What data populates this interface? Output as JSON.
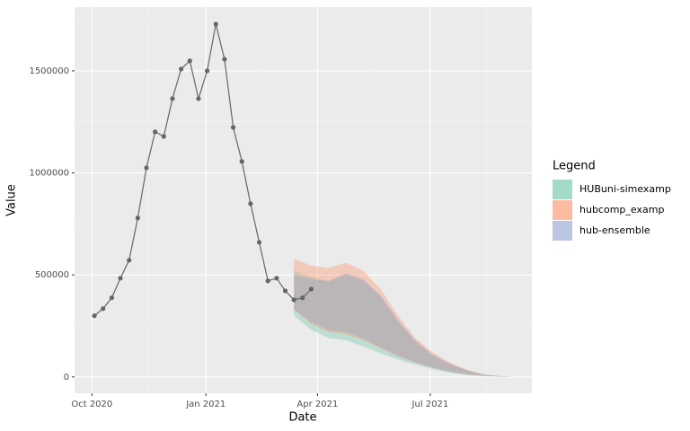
{
  "chart_data": {
    "type": "line",
    "x_label": "Date",
    "y_label": "Value",
    "legend_title": "Legend",
    "legend_position": "right",
    "grid": true,
    "xlim": [
      "2020-09-17",
      "2021-09-21"
    ],
    "xticks": [
      {
        "value": "2020-10-01",
        "label": "Oct 2020"
      },
      {
        "value": "2021-01-01",
        "label": "Jan 2021"
      },
      {
        "value": "2021-04-01",
        "label": "Apr 2021"
      },
      {
        "value": "2021-07-01",
        "label": "Jul 2021"
      }
    ],
    "ylim": [
      -80000,
      1812000
    ],
    "yticks": [
      0,
      500000,
      1000000,
      1500000
    ],
    "observed": {
      "color": "#666666",
      "x": [
        "2020-10-03",
        "2020-10-10",
        "2020-10-17",
        "2020-10-24",
        "2020-10-31",
        "2020-11-07",
        "2020-11-14",
        "2020-11-21",
        "2020-11-28",
        "2020-12-05",
        "2020-12-12",
        "2020-12-19",
        "2020-12-26",
        "2021-01-02",
        "2021-01-09",
        "2021-01-16",
        "2021-01-23",
        "2021-01-30",
        "2021-02-06",
        "2021-02-13",
        "2021-02-20",
        "2021-02-27",
        "2021-03-06",
        "2021-03-13",
        "2021-03-20",
        "2021-03-27"
      ],
      "values": [
        300000,
        335000,
        388000,
        484000,
        572000,
        779000,
        1025000,
        1201000,
        1179000,
        1364000,
        1509000,
        1549000,
        1364000,
        1500000,
        1729000,
        1557000,
        1223000,
        1056000,
        849000,
        660000,
        471000,
        484000,
        422000,
        378000,
        388000,
        431000
      ]
    },
    "series": [
      {
        "name": "HUBuni-simexamp",
        "color": "#66c2a5",
        "x": [
          "2021-03-13",
          "2021-03-27",
          "2021-04-10",
          "2021-04-24",
          "2021-05-08",
          "2021-05-22",
          "2021-06-05",
          "2021-06-19",
          "2021-07-03",
          "2021-07-17",
          "2021-07-31",
          "2021-08-14",
          "2021-08-28",
          "2021-09-04"
        ],
        "upper": [
          520000,
          490000,
          470000,
          500000,
          470000,
          390000,
          270000,
          170000,
          105000,
          60000,
          30000,
          10000,
          3000,
          1000
        ],
        "lower": [
          300000,
          230000,
          190000,
          180000,
          150000,
          115000,
          85000,
          60000,
          38000,
          20000,
          10000,
          4000,
          1000,
          0
        ]
      },
      {
        "name": "hubcomp_examp",
        "color": "#fc8d62",
        "x": [
          "2021-03-13",
          "2021-03-27",
          "2021-04-10",
          "2021-04-24",
          "2021-05-08",
          "2021-05-22",
          "2021-06-05",
          "2021-06-19",
          "2021-07-03",
          "2021-07-17",
          "2021-07-31",
          "2021-08-14",
          "2021-08-28",
          "2021-09-04"
        ],
        "upper": [
          580000,
          545000,
          535000,
          560000,
          520000,
          430000,
          300000,
          190000,
          120000,
          70000,
          35000,
          12000,
          4000,
          1000
        ],
        "lower": [
          330000,
          260000,
          220000,
          210000,
          180000,
          140000,
          100000,
          70000,
          45000,
          25000,
          12000,
          5000,
          2000,
          0
        ]
      },
      {
        "name": "hub-ensemble",
        "color": "#8da0cb",
        "x": [
          "2021-03-13",
          "2021-03-27",
          "2021-04-10",
          "2021-04-24",
          "2021-05-08",
          "2021-05-22",
          "2021-06-05",
          "2021-06-19",
          "2021-07-03",
          "2021-07-17",
          "2021-07-31",
          "2021-08-14",
          "2021-08-28",
          "2021-09-04"
        ],
        "upper": [
          500000,
          480000,
          470000,
          510000,
          480000,
          400000,
          280000,
          180000,
          110000,
          65000,
          32000,
          11000,
          3000,
          1000
        ],
        "lower": [
          330000,
          270000,
          230000,
          220000,
          190000,
          145000,
          105000,
          72000,
          46000,
          26000,
          13000,
          5000,
          2000,
          0
        ]
      }
    ]
  }
}
